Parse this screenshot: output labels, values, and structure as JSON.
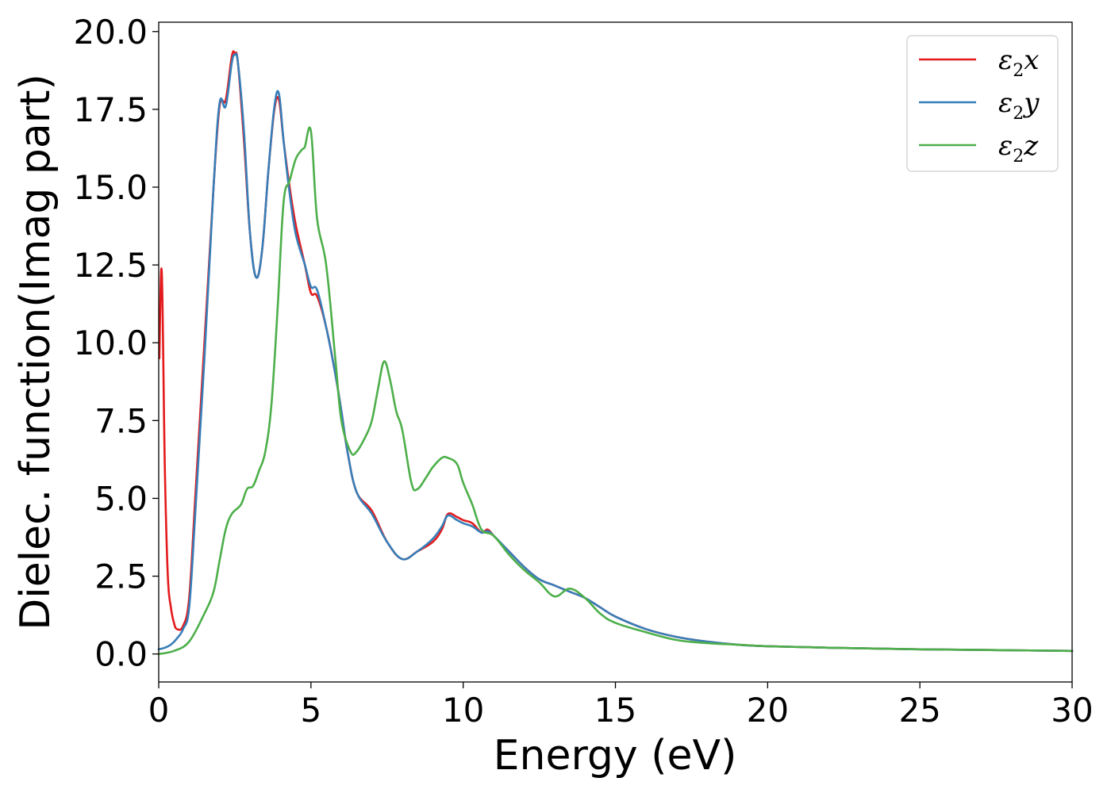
{
  "chart_data": {
    "type": "line",
    "title": "",
    "xlabel": "Energy (eV)",
    "ylabel": "Dielec. function(Imag part)",
    "xlim": [
      0,
      30
    ],
    "ylim": [
      -0.9,
      20.3
    ],
    "xticks": [
      0,
      5,
      10,
      15,
      20,
      25,
      30
    ],
    "xtick_labels": [
      "0",
      "5",
      "10",
      "15",
      "20",
      "25",
      "30"
    ],
    "yticks": [
      0,
      2.5,
      5,
      7.5,
      10,
      12.5,
      15,
      17.5,
      20
    ],
    "ytick_labels": [
      "0.0",
      "2.5",
      "5.0",
      "7.5",
      "10.0",
      "12.5",
      "15.0",
      "17.5",
      "20.0"
    ],
    "grid": false,
    "legend_position": "top-right",
    "series": [
      {
        "name": "ε₂x",
        "legend_main": "ε",
        "legend_sub": "2",
        "legend_suffix": "x",
        "color": "#e41a1c",
        "x": [
          0.02,
          0.1,
          0.2,
          0.3,
          0.4,
          0.5,
          0.6,
          0.8,
          1.0,
          1.2,
          1.5,
          1.8,
          2.0,
          2.2,
          2.4,
          2.5,
          2.6,
          2.8,
          3.0,
          3.2,
          3.4,
          3.6,
          3.8,
          3.95,
          4.1,
          4.3,
          4.5,
          4.8,
          5.0,
          5.2,
          5.5,
          5.8,
          6.0,
          6.2,
          6.5,
          7.0,
          7.5,
          8.0,
          8.5,
          9.0,
          9.3,
          9.5,
          9.8,
          10.0,
          10.3,
          10.6,
          10.8,
          11.0,
          11.5,
          12.0,
          12.5,
          13.0,
          13.5,
          14.0,
          14.5,
          15.0,
          16.0,
          17.0,
          18.0,
          19.0,
          20.0,
          22.0,
          25.0,
          28.0,
          30.0
        ],
        "y": [
          9.5,
          12.3,
          6.0,
          2.5,
          1.5,
          1.0,
          0.8,
          0.9,
          1.8,
          5.0,
          10.0,
          15.0,
          17.6,
          17.8,
          19.2,
          19.3,
          19.0,
          16.5,
          13.5,
          12.1,
          13.0,
          15.5,
          17.5,
          17.8,
          16.5,
          15.0,
          13.8,
          12.5,
          11.6,
          11.5,
          10.5,
          9.0,
          7.8,
          6.5,
          5.2,
          4.6,
          3.6,
          3.05,
          3.3,
          3.6,
          4.0,
          4.5,
          4.4,
          4.3,
          4.2,
          3.9,
          4.0,
          3.8,
          3.3,
          2.8,
          2.4,
          2.2,
          2.0,
          1.8,
          1.5,
          1.2,
          0.8,
          0.55,
          0.4,
          0.3,
          0.25,
          0.2,
          0.15,
          0.12,
          0.1
        ]
      },
      {
        "name": "ε₂y",
        "legend_main": "ε",
        "legend_sub": "2",
        "legend_suffix": "y",
        "color": "#377eb8",
        "x": [
          0.0,
          0.2,
          0.4,
          0.6,
          0.8,
          1.0,
          1.2,
          1.5,
          1.8,
          2.0,
          2.2,
          2.4,
          2.5,
          2.6,
          2.8,
          3.0,
          3.2,
          3.4,
          3.6,
          3.8,
          3.95,
          4.1,
          4.3,
          4.5,
          4.8,
          5.0,
          5.2,
          5.5,
          5.8,
          6.0,
          6.2,
          6.5,
          7.0,
          7.5,
          8.0,
          8.5,
          9.0,
          9.3,
          9.5,
          9.8,
          10.0,
          10.3,
          10.6,
          10.8,
          11.0,
          11.5,
          12.0,
          12.5,
          13.0,
          13.5,
          14.0,
          14.5,
          15.0,
          16.0,
          17.0,
          18.0,
          19.0,
          20.0,
          22.0,
          25.0,
          28.0,
          30.0
        ],
        "y": [
          0.15,
          0.2,
          0.3,
          0.5,
          0.8,
          1.5,
          4.5,
          9.5,
          15.0,
          17.7,
          17.6,
          19.0,
          19.25,
          19.0,
          16.8,
          13.5,
          12.1,
          13.0,
          15.5,
          17.6,
          18.0,
          16.5,
          14.8,
          13.5,
          12.5,
          11.8,
          11.7,
          10.5,
          9.0,
          7.8,
          6.5,
          5.2,
          4.5,
          3.6,
          3.05,
          3.3,
          3.7,
          4.1,
          4.45,
          4.3,
          4.2,
          4.1,
          3.9,
          3.95,
          3.8,
          3.3,
          2.8,
          2.4,
          2.2,
          2.0,
          1.8,
          1.5,
          1.2,
          0.8,
          0.55,
          0.4,
          0.3,
          0.25,
          0.2,
          0.15,
          0.12,
          0.1
        ]
      },
      {
        "name": "ε₂z",
        "legend_main": "ε",
        "legend_sub": "2",
        "legend_suffix": "z",
        "color": "#4daf4a",
        "x": [
          0.0,
          0.5,
          1.0,
          1.5,
          1.8,
          2.0,
          2.2,
          2.4,
          2.7,
          2.9,
          3.1,
          3.3,
          3.5,
          3.7,
          3.9,
          4.1,
          4.3,
          4.5,
          4.7,
          4.8,
          5.0,
          5.2,
          5.5,
          5.8,
          6.0,
          6.3,
          6.5,
          6.8,
          7.0,
          7.2,
          7.4,
          7.6,
          7.8,
          8.0,
          8.3,
          8.5,
          8.8,
          9.0,
          9.3,
          9.5,
          9.8,
          10.0,
          10.3,
          10.6,
          11.0,
          11.5,
          12.0,
          12.5,
          13.0,
          13.5,
          14.0,
          14.5,
          15.0,
          16.0,
          17.0,
          18.0,
          19.0,
          20.0,
          22.0,
          25.0,
          28.0,
          30.0
        ],
        "y": [
          0.0,
          0.1,
          0.4,
          1.3,
          2.0,
          3.0,
          4.0,
          4.5,
          4.8,
          5.3,
          5.4,
          5.9,
          6.5,
          8.0,
          11.0,
          14.5,
          15.2,
          15.9,
          16.2,
          16.3,
          16.8,
          14.0,
          12.5,
          9.5,
          7.5,
          6.5,
          6.5,
          7.0,
          7.5,
          8.5,
          9.4,
          8.8,
          7.8,
          7.2,
          5.5,
          5.3,
          5.7,
          6.0,
          6.3,
          6.3,
          6.1,
          5.5,
          4.8,
          4.0,
          3.8,
          3.2,
          2.7,
          2.3,
          1.85,
          2.1,
          1.8,
          1.3,
          1.0,
          0.7,
          0.45,
          0.35,
          0.3,
          0.25,
          0.2,
          0.15,
          0.12,
          0.1
        ]
      }
    ]
  }
}
